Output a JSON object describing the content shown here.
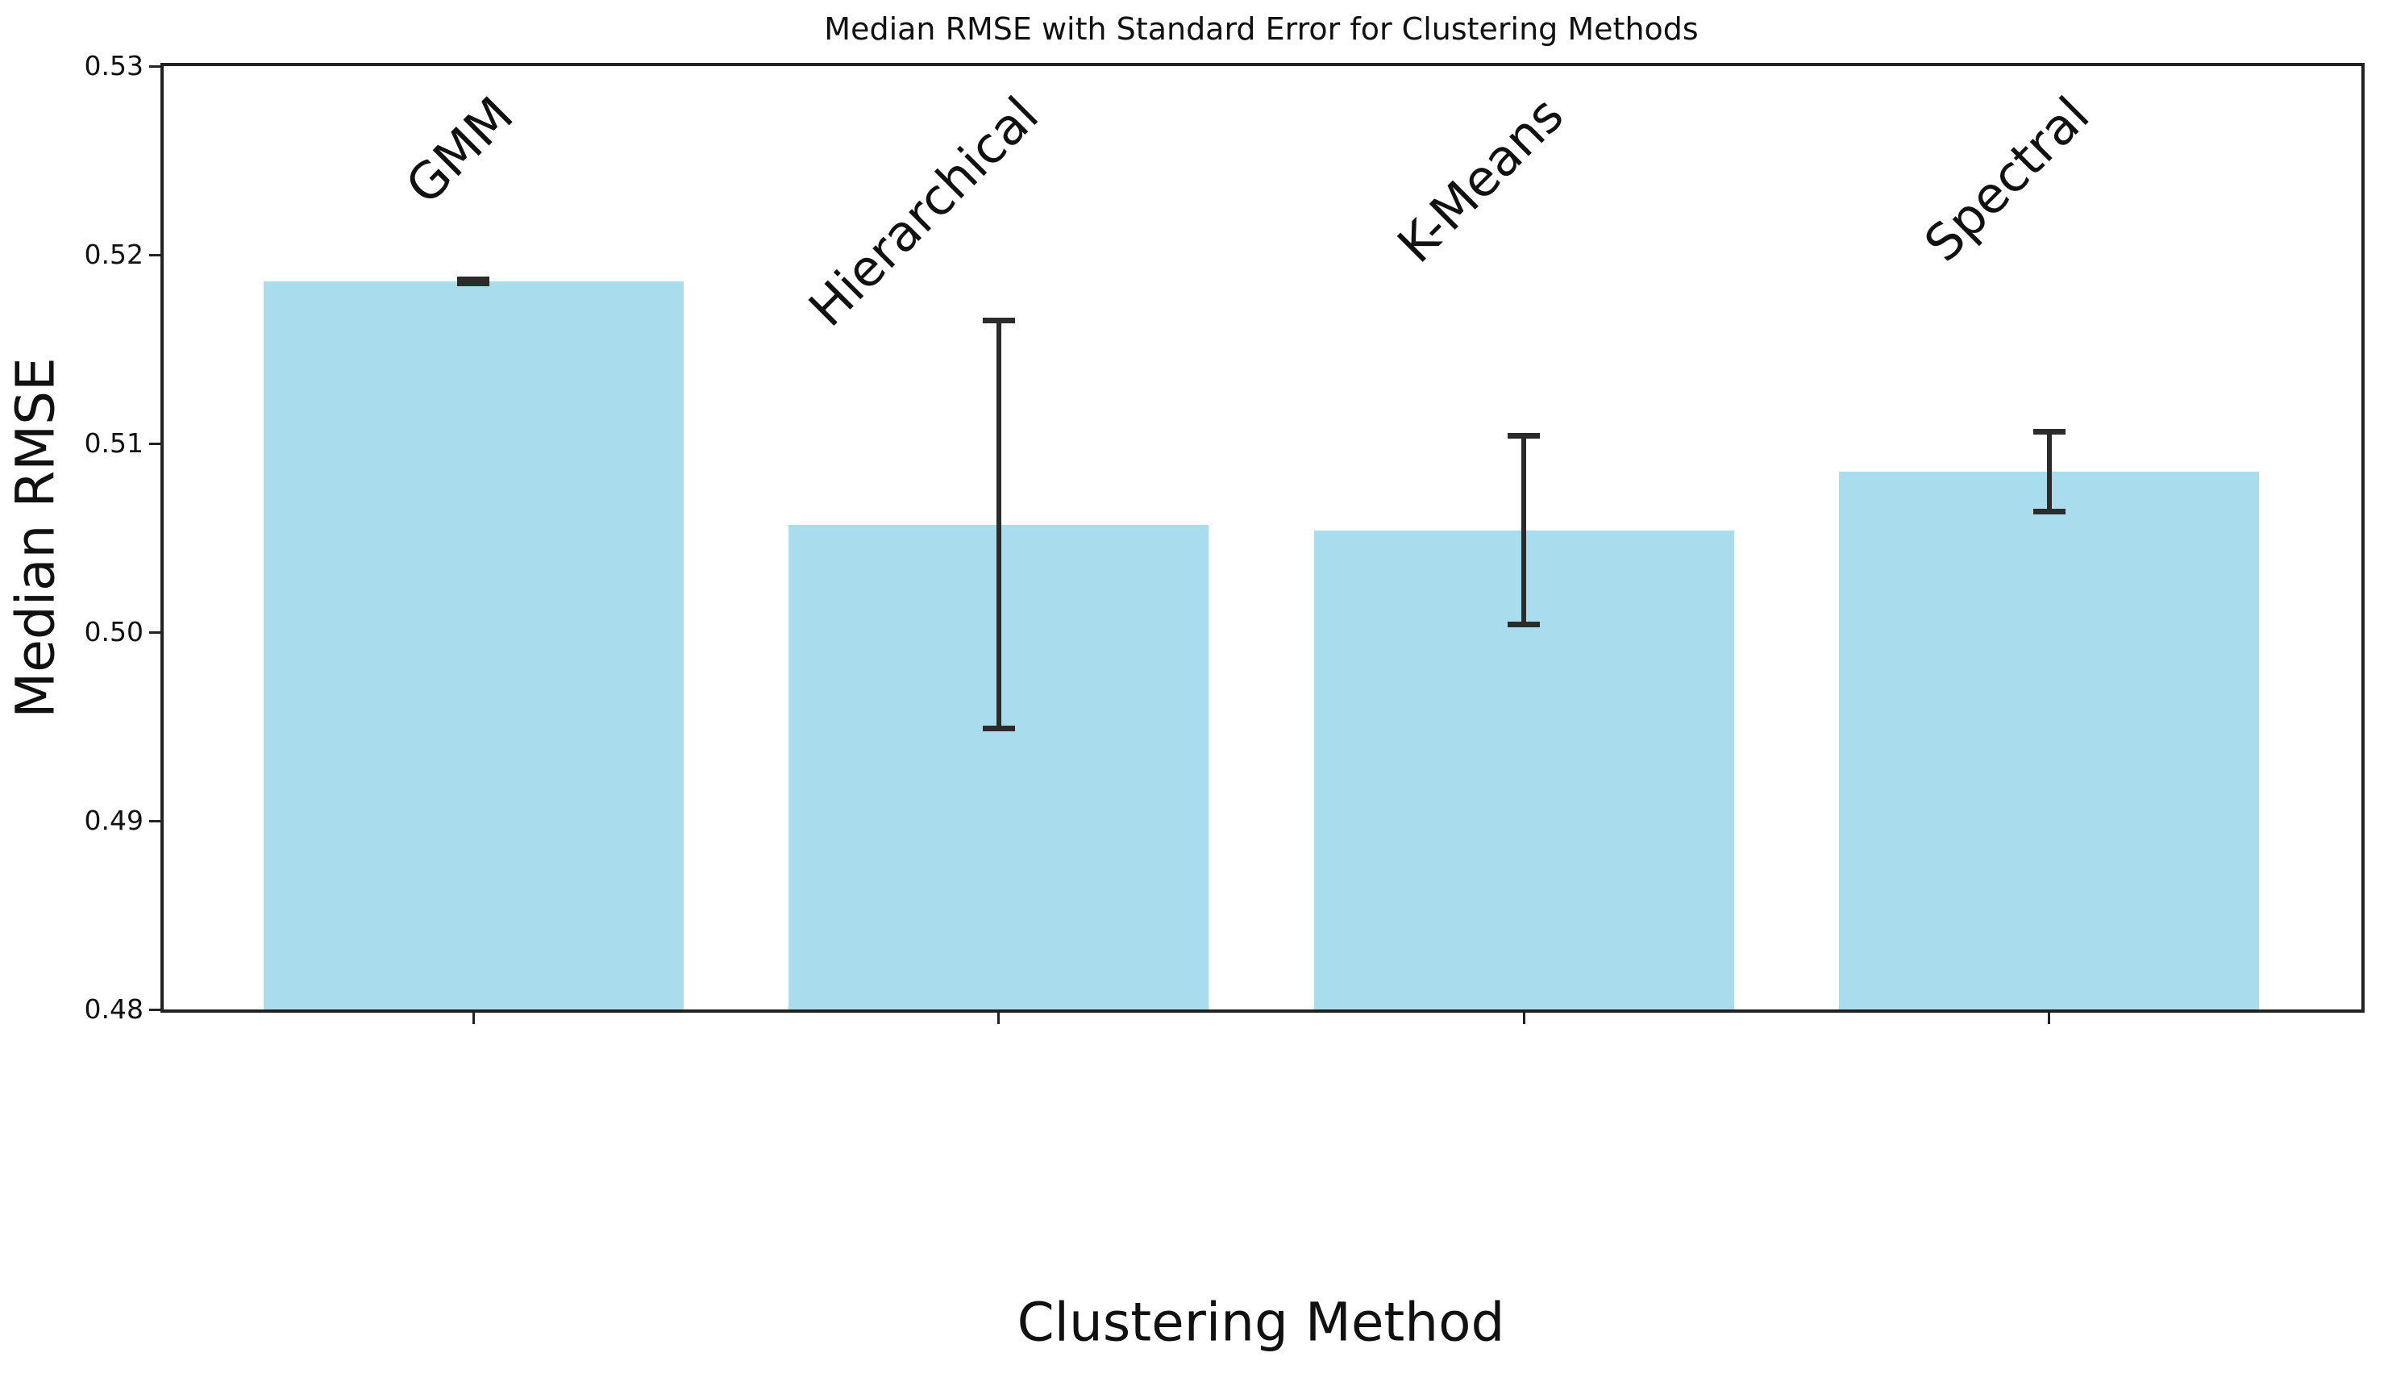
{
  "chart_data": {
    "type": "bar",
    "title": "Median RMSE with Standard Error for Clustering Methods",
    "xlabel": "Clustering Method",
    "ylabel": "Median RMSE",
    "categories": [
      "GMM",
      "Hierarchical",
      "K-Means",
      "Spectral"
    ],
    "values": [
      0.5186,
      0.5057,
      0.5054,
      0.5085
    ],
    "errors": [
      0.0001,
      0.0108,
      0.005,
      0.0021
    ],
    "ylim": [
      0.48,
      0.53
    ],
    "yticks": [
      0.48,
      0.49,
      0.5,
      0.51,
      0.52,
      0.53
    ],
    "ytick_labels": [
      "0.48",
      "0.49",
      "0.50",
      "0.51",
      "0.52",
      "0.53"
    ],
    "xlim": [
      -0.59,
      3.59
    ],
    "bar_width_units": 0.8,
    "grid": false,
    "legend": null,
    "bar_color": "#a9dcec",
    "error_color": "#2b2b2b",
    "axis_color": "#222222",
    "text_color": "#111111"
  }
}
